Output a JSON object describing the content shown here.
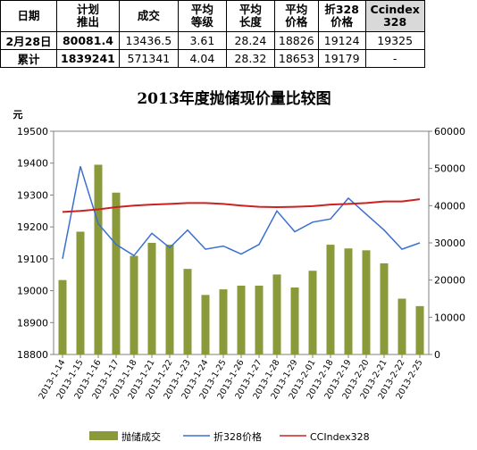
{
  "table": {
    "header": [
      "日期",
      "计划\n推出",
      "成交",
      "平均\n等级",
      "平均\n长度",
      "平均\n价格",
      "折328\n价格",
      "Ccindex\n328"
    ],
    "rows": [
      [
        "2月28日",
        "80081.4",
        "13436.5",
        "3.61",
        "28.24",
        "18826",
        "19124",
        "19325"
      ],
      [
        "累计",
        "1839241",
        "571341",
        "4.04",
        "28.32",
        "18653",
        "19179",
        "-"
      ]
    ]
  },
  "chart_data": {
    "type": "bar",
    "title": "2013年度抛储现价量比较图",
    "ylabel": "元",
    "categories": [
      "2013-1-14",
      "2013-1-15",
      "2013-1-16",
      "2013-1-17",
      "2013-1-18",
      "2013-1-21",
      "2013-1-22",
      "2013-1-23",
      "2013-1-24",
      "2013-1-25",
      "2013-1-26",
      "2013-1-27",
      "2013-1-28",
      "2013-1-29",
      "2013-2-01",
      "2013-2-18",
      "2013-2-19",
      "2013-2-20",
      "2013-2-21",
      "2013-2-22",
      "2013-2-25"
    ],
    "y_left": {
      "min": 18800,
      "max": 19500,
      "step": 100,
      "ticks": [
        "19500",
        "19400",
        "19300",
        "19200",
        "19100",
        "19000",
        "18900",
        "18800"
      ]
    },
    "y_right": {
      "min": 0,
      "max": 60000,
      "step": 10000,
      "ticks": [
        "60000",
        "50000",
        "40000",
        "30000",
        "20000",
        "10000",
        "0"
      ]
    },
    "series": [
      {
        "name": "抛储成交",
        "type": "bar",
        "axis": "right",
        "color": "#8a9a3a",
        "values": [
          20000,
          33000,
          51000,
          43500,
          26500,
          30000,
          29500,
          23000,
          16000,
          17500,
          18500,
          18500,
          21500,
          18000,
          22500,
          29500,
          28500,
          28000,
          24500,
          15000,
          13000
        ]
      },
      {
        "name": "折328价格",
        "type": "line",
        "axis": "left",
        "color": "#3a6fd0",
        "values": [
          19100,
          19390,
          19210,
          19145,
          19110,
          19180,
          19135,
          19190,
          19130,
          19140,
          19115,
          19145,
          19250,
          19185,
          19215,
          19225,
          19290,
          19240,
          19190,
          19130,
          19150
        ]
      },
      {
        "name": "CCIndex328",
        "type": "line",
        "axis": "left",
        "color": "#cc2222",
        "values": [
          19247,
          19250,
          19255,
          19262,
          19267,
          19270,
          19272,
          19275,
          19275,
          19272,
          19267,
          19263,
          19262,
          19263,
          19265,
          19270,
          19272,
          19275,
          19280,
          19280,
          19287
        ]
      }
    ],
    "legend_position": "bottom",
    "grid": false
  }
}
